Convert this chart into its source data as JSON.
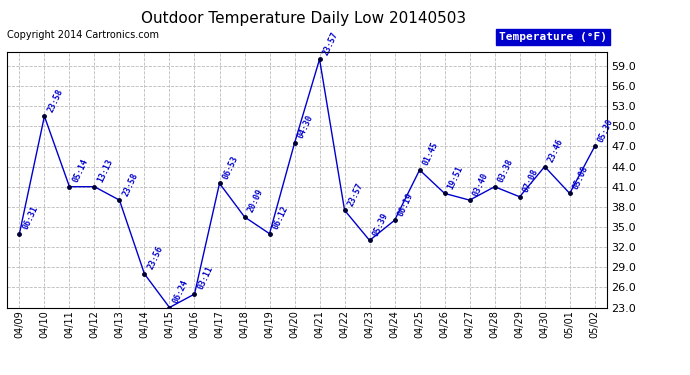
{
  "title": "Outdoor Temperature Daily Low 20140503",
  "copyright_text": "Copyright 2014 Cartronics.com",
  "legend_label": "Temperature (°F)",
  "dates": [
    "04/09",
    "04/10",
    "04/11",
    "04/12",
    "04/13",
    "04/14",
    "04/15",
    "04/16",
    "04/17",
    "04/18",
    "04/19",
    "04/20",
    "04/21",
    "04/22",
    "04/23",
    "04/24",
    "04/25",
    "04/26",
    "04/27",
    "04/28",
    "04/29",
    "04/30",
    "05/01",
    "05/02"
  ],
  "temps": [
    34.0,
    51.5,
    41.0,
    41.0,
    39.0,
    28.0,
    23.0,
    25.0,
    41.5,
    36.5,
    34.0,
    47.5,
    60.0,
    37.5,
    33.0,
    36.0,
    43.5,
    40.0,
    39.0,
    41.0,
    39.5,
    44.0,
    40.0,
    47.0
  ],
  "times": [
    "06:31",
    "23:58",
    "05:14",
    "13:13",
    "23:58",
    "23:56",
    "06:24",
    "03:11",
    "06:53",
    "20:09",
    "06:12",
    "04:30",
    "23:57",
    "23:57",
    "05:39",
    "06:19",
    "01:45",
    "19:51",
    "03:40",
    "03:38",
    "07:08",
    "23:46",
    "05:08",
    "05:30"
  ],
  "ylim_min": 23.0,
  "ylim_max": 61.0,
  "yticks": [
    23.0,
    26.0,
    29.0,
    32.0,
    35.0,
    38.0,
    41.0,
    44.0,
    47.0,
    50.0,
    53.0,
    56.0,
    59.0
  ],
  "line_color": "#0000CC",
  "marker_color": "#000033",
  "bg_color": "#ffffff",
  "grid_color": "#bbbbbb",
  "title_color": "#000000",
  "legend_bg": "#0000CC",
  "legend_fg": "#ffffff",
  "copyright_color": "#000000"
}
